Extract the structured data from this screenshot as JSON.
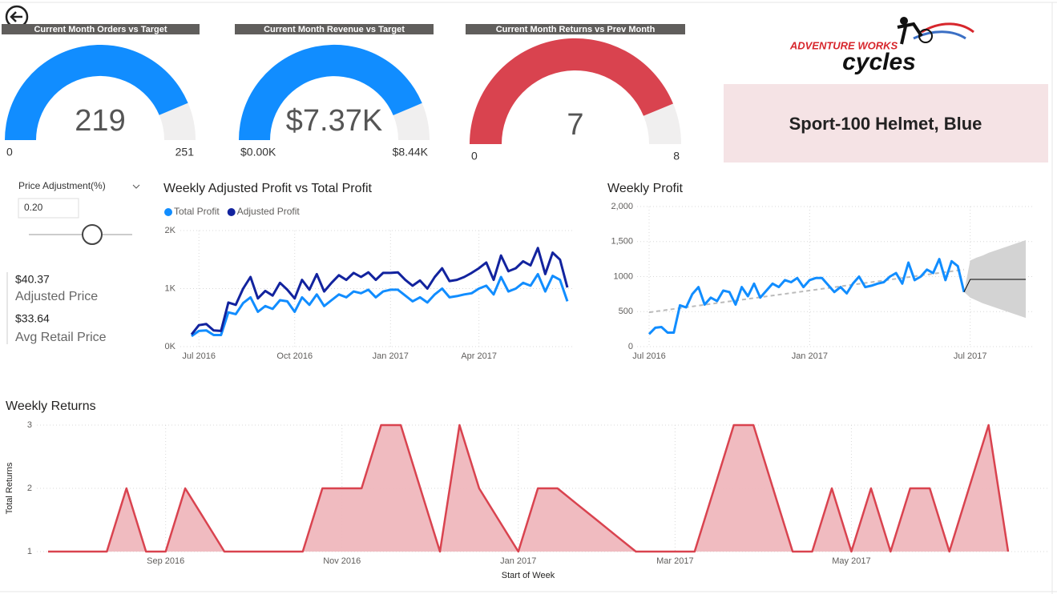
{
  "chart_data": [
    {
      "type": "gauge",
      "title": "Current Month Orders vs Target",
      "value": 219,
      "min": 0,
      "max": 251,
      "color": "#118DFF",
      "track_color": "#F0EFEF"
    },
    {
      "type": "gauge",
      "title": "Current Month Revenue vs Target",
      "value": 7370,
      "value_label": "$7.37K",
      "min": {
        "value": 0,
        "label": "$0.00K"
      },
      "max": {
        "value": 8440,
        "label": "$8.44K"
      },
      "color": "#118DFF",
      "track_color": "#F0EFEF"
    },
    {
      "type": "gauge",
      "title": "Current Month Returns vs Prev Month",
      "value": 7,
      "min": 0,
      "max": 8,
      "color": "#D9434F",
      "track_color": "#F0EFEF"
    },
    {
      "type": "line",
      "title": "Weekly Adjusted Profit vs Total Profit",
      "legend": true,
      "categories": [
        null,
        "Jul 2016",
        null,
        null,
        null,
        null,
        null,
        null,
        null,
        null,
        null,
        null,
        null,
        null,
        "Oct 2016",
        null,
        null,
        null,
        null,
        null,
        null,
        null,
        null,
        null,
        null,
        null,
        null,
        "Jan 2017",
        null,
        null,
        null,
        null,
        null,
        null,
        null,
        null,
        null,
        null,
        null,
        "Apr 2017",
        null,
        null,
        null,
        null,
        null,
        null,
        null,
        null,
        null,
        null,
        null,
        null
      ],
      "series": [
        {
          "name": "Total Profit",
          "color": "#118DFF",
          "values": [
            180,
            270,
            280,
            200,
            200,
            590,
            560,
            750,
            850,
            600,
            700,
            650,
            800,
            780,
            600,
            850,
            720,
            900,
            700,
            800,
            900,
            850,
            950,
            920,
            980,
            850,
            950,
            980,
            980,
            880,
            780,
            850,
            760,
            900,
            1000,
            850,
            870,
            900,
            920,
            1000,
            1050,
            900,
            1200,
            950,
            1000,
            1100,
            1050,
            1250,
            950,
            1220,
            1150,
            780
          ]
        },
        {
          "name": "Adjusted Profit",
          "color": "#12239E",
          "values": [
            210,
            370,
            390,
            280,
            270,
            760,
            720,
            1000,
            1200,
            830,
            960,
            880,
            1100,
            980,
            830,
            1150,
            980,
            1250,
            950,
            1100,
            1230,
            1150,
            1270,
            1200,
            1280,
            1150,
            1270,
            1270,
            1280,
            1150,
            1050,
            1140,
            1000,
            1200,
            1350,
            1130,
            1150,
            1200,
            1270,
            1350,
            1450,
            1150,
            1570,
            1300,
            1350,
            1470,
            1400,
            1700,
            1250,
            1620,
            1500,
            1020
          ]
        }
      ],
      "ylim": [
        0,
        2000
      ],
      "yticks": [
        {
          "value": 0,
          "label": "0K"
        },
        {
          "value": 1000,
          "label": "1K"
        },
        {
          "value": 2000,
          "label": "2K"
        }
      ],
      "grid": true
    },
    {
      "type": "line",
      "title": "Weekly Profit",
      "categories": [
        "Jul 2016",
        null,
        null,
        null,
        null,
        null,
        null,
        null,
        null,
        null,
        null,
        null,
        null,
        null,
        null,
        null,
        null,
        null,
        null,
        null,
        null,
        null,
        null,
        null,
        null,
        null,
        "Jan 2017",
        null,
        null,
        null,
        null,
        null,
        null,
        null,
        null,
        null,
        null,
        null,
        null,
        null,
        null,
        null,
        null,
        null,
        null,
        null,
        null,
        null,
        null,
        null,
        null,
        null,
        "Jul 2017",
        null,
        null,
        null,
        null,
        null,
        null,
        null,
        null,
        null
      ],
      "series": [
        {
          "color": "#118DFF",
          "values": [
            180,
            270,
            280,
            200,
            200,
            590,
            560,
            750,
            850,
            600,
            700,
            650,
            800,
            780,
            600,
            850,
            720,
            900,
            700,
            800,
            900,
            850,
            950,
            920,
            980,
            850,
            950,
            980,
            980,
            880,
            780,
            850,
            760,
            900,
            1000,
            850,
            870,
            900,
            920,
            1000,
            1050,
            900,
            1200,
            950,
            1000,
            1100,
            1050,
            1250,
            950,
            1220,
            1150,
            780,
            null,
            null,
            null,
            null,
            null,
            null,
            null,
            null,
            null,
            null
          ]
        },
        {
          "color": "#000000",
          "values": [
            null,
            null,
            null,
            null,
            null,
            null,
            null,
            null,
            null,
            null,
            null,
            null,
            null,
            null,
            null,
            null,
            null,
            null,
            null,
            null,
            null,
            null,
            null,
            null,
            null,
            null,
            null,
            null,
            null,
            null,
            null,
            null,
            null,
            null,
            null,
            null,
            null,
            null,
            null,
            null,
            null,
            null,
            null,
            null,
            null,
            null,
            null,
            null,
            null,
            null,
            null,
            780,
            960,
            960,
            960,
            960,
            960,
            960,
            960,
            960,
            960,
            960
          ]
        }
      ],
      "forecast_band": {
        "color": "#D3D3D3",
        "lower": [
          null,
          null,
          null,
          null,
          null,
          null,
          null,
          null,
          null,
          null,
          null,
          null,
          null,
          null,
          null,
          null,
          null,
          null,
          null,
          null,
          null,
          null,
          null,
          null,
          null,
          null,
          null,
          null,
          null,
          null,
          null,
          null,
          null,
          null,
          null,
          null,
          null,
          null,
          null,
          null,
          null,
          null,
          null,
          null,
          null,
          null,
          null,
          null,
          null,
          null,
          null,
          780,
          700,
          660,
          620,
          590,
          560,
          530,
          500,
          470,
          440,
          410
        ],
        "upper": [
          null,
          null,
          null,
          null,
          null,
          null,
          null,
          null,
          null,
          null,
          null,
          null,
          null,
          null,
          null,
          null,
          null,
          null,
          null,
          null,
          null,
          null,
          null,
          null,
          null,
          null,
          null,
          null,
          null,
          null,
          null,
          null,
          null,
          null,
          null,
          null,
          null,
          null,
          null,
          null,
          null,
          null,
          null,
          null,
          null,
          null,
          null,
          null,
          null,
          null,
          null,
          780,
          1230,
          1270,
          1300,
          1340,
          1370,
          1400,
          1430,
          1460,
          1490,
          1520
        ]
      },
      "trendline": {
        "color": "#BBBBBB",
        "values": [
          490,
          1100
        ]
      },
      "ylim": [
        0,
        2000
      ],
      "yticks": [
        0,
        500,
        1000,
        {
          "value": 1500,
          "label": "1,500"
        },
        {
          "value": 2000,
          "label": "2,000"
        }
      ],
      "grid": true
    },
    {
      "type": "area",
      "title": "Weekly Returns",
      "x_label": "Start of Week",
      "y_label": "Total Returns",
      "categories": [
        null,
        null,
        null,
        null,
        null,
        null,
        "Sep 2016",
        null,
        null,
        null,
        null,
        null,
        null,
        null,
        null,
        "Nov 2016",
        null,
        null,
        null,
        null,
        null,
        null,
        null,
        null,
        "Jan 2017",
        null,
        null,
        null,
        null,
        null,
        null,
        null,
        "Mar 2017",
        null,
        null,
        null,
        null,
        null,
        null,
        null,
        null,
        "May 2017",
        null,
        null,
        null,
        null,
        null,
        null,
        null,
        null
      ],
      "values": [
        1,
        1,
        1,
        1,
        2,
        1,
        1,
        2,
        1.5,
        1,
        1,
        1,
        1,
        1,
        2,
        2,
        2,
        3,
        3,
        2,
        1,
        3,
        2,
        1.5,
        1,
        2,
        2,
        1.75,
        1.5,
        1.25,
        1,
        1,
        1,
        1,
        2,
        3,
        3,
        2,
        1,
        1,
        2,
        1,
        2,
        1,
        2,
        2,
        1,
        2,
        3,
        1
      ],
      "color": "#D9434F",
      "fill_color": "#EFB7BD",
      "ylim": [
        1,
        3
      ],
      "yticks": [
        1,
        2,
        3
      ],
      "grid": true
    }
  ],
  "slicer": {
    "title": "Price Adjustment(%)",
    "value": "0.20"
  },
  "kpis": [
    {
      "value": "$40.37",
      "label": "Adjusted Price"
    },
    {
      "value": "$33.64",
      "label": "Avg Retail Price"
    }
  ],
  "card": {
    "text": "Sport-100 Helmet, Blue"
  },
  "logo": {
    "line1": "ADVENTURE WORKS",
    "line2": "cycles"
  }
}
